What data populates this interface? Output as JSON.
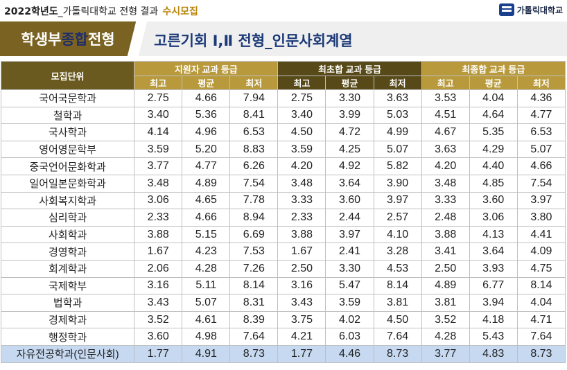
{
  "header": {
    "year": "2022학년도",
    "description": "_가톨릭대학교 전형 결과",
    "category": "수시모집",
    "logo_text": "가톨릭대학교"
  },
  "title": {
    "part1": "학생부",
    "part2": "종합",
    "part3": "전형",
    "subtitle": "고른기회 Ⅰ,Ⅱ 전형_인문사회계열"
  },
  "table": {
    "unit_header": "모집단위",
    "groups": [
      "지원자 교과 등급",
      "최초합 교과 등급",
      "최종합 교과 등급"
    ],
    "subheaders": [
      "최고",
      "평균",
      "최저",
      "최고",
      "평균",
      "최저",
      "최고",
      "평균",
      "최저"
    ],
    "rows": [
      {
        "name": "국어국문학과",
        "v": [
          "2.75",
          "4.66",
          "7.94",
          "2.75",
          "3.30",
          "3.63",
          "3.53",
          "4.04",
          "4.36"
        ]
      },
      {
        "name": "철학과",
        "v": [
          "3.40",
          "5.36",
          "8.41",
          "3.40",
          "3.99",
          "5.03",
          "4.51",
          "4.64",
          "4.77"
        ]
      },
      {
        "name": "국사학과",
        "v": [
          "4.14",
          "4.96",
          "6.53",
          "4.50",
          "4.72",
          "4.99",
          "4.67",
          "5.35",
          "6.53"
        ]
      },
      {
        "name": "영어영문학부",
        "v": [
          "3.59",
          "5.20",
          "8.83",
          "3.59",
          "4.25",
          "5.07",
          "3.63",
          "4.29",
          "5.07"
        ]
      },
      {
        "name": "중국언어문화학과",
        "v": [
          "3.77",
          "4.77",
          "6.26",
          "4.20",
          "4.92",
          "5.82",
          "4.20",
          "4.40",
          "4.66"
        ]
      },
      {
        "name": "일어일본문화학과",
        "v": [
          "3.48",
          "4.89",
          "7.54",
          "3.48",
          "3.64",
          "3.90",
          "3.48",
          "4.85",
          "7.54"
        ]
      },
      {
        "name": "사회복지학과",
        "v": [
          "3.06",
          "4.65",
          "7.78",
          "3.33",
          "3.60",
          "3.97",
          "3.33",
          "3.60",
          "3.97"
        ]
      },
      {
        "name": "심리학과",
        "v": [
          "2.33",
          "4.66",
          "8.94",
          "2.33",
          "2.44",
          "2.57",
          "2.48",
          "3.06",
          "3.80"
        ]
      },
      {
        "name": "사회학과",
        "v": [
          "3.88",
          "5.15",
          "6.69",
          "3.88",
          "3.97",
          "4.10",
          "3.88",
          "4.13",
          "4.41"
        ]
      },
      {
        "name": "경영학과",
        "v": [
          "1.67",
          "4.23",
          "7.53",
          "1.67",
          "2.41",
          "3.28",
          "3.41",
          "3.64",
          "4.09"
        ]
      },
      {
        "name": "회계학과",
        "v": [
          "2.06",
          "4.28",
          "7.26",
          "2.50",
          "3.30",
          "4.53",
          "2.50",
          "3.93",
          "4.75"
        ]
      },
      {
        "name": "국제학부",
        "v": [
          "3.16",
          "5.11",
          "8.14",
          "3.16",
          "5.47",
          "8.14",
          "4.89",
          "6.77",
          "8.14"
        ]
      },
      {
        "name": "법학과",
        "v": [
          "3.43",
          "5.07",
          "8.31",
          "3.43",
          "3.59",
          "3.81",
          "3.81",
          "3.94",
          "4.04"
        ]
      },
      {
        "name": "경제학과",
        "v": [
          "3.52",
          "4.61",
          "8.39",
          "3.75",
          "4.02",
          "4.50",
          "3.52",
          "4.18",
          "4.71"
        ]
      },
      {
        "name": "행정학과",
        "v": [
          "3.60",
          "4.98",
          "7.64",
          "4.21",
          "6.03",
          "7.64",
          "4.28",
          "5.43",
          "7.64"
        ]
      },
      {
        "name": "자유전공학과(인문사회)",
        "v": [
          "1.77",
          "4.91",
          "8.73",
          "1.77",
          "4.46",
          "8.73",
          "3.77",
          "4.83",
          "8.73"
        ]
      }
    ]
  }
}
